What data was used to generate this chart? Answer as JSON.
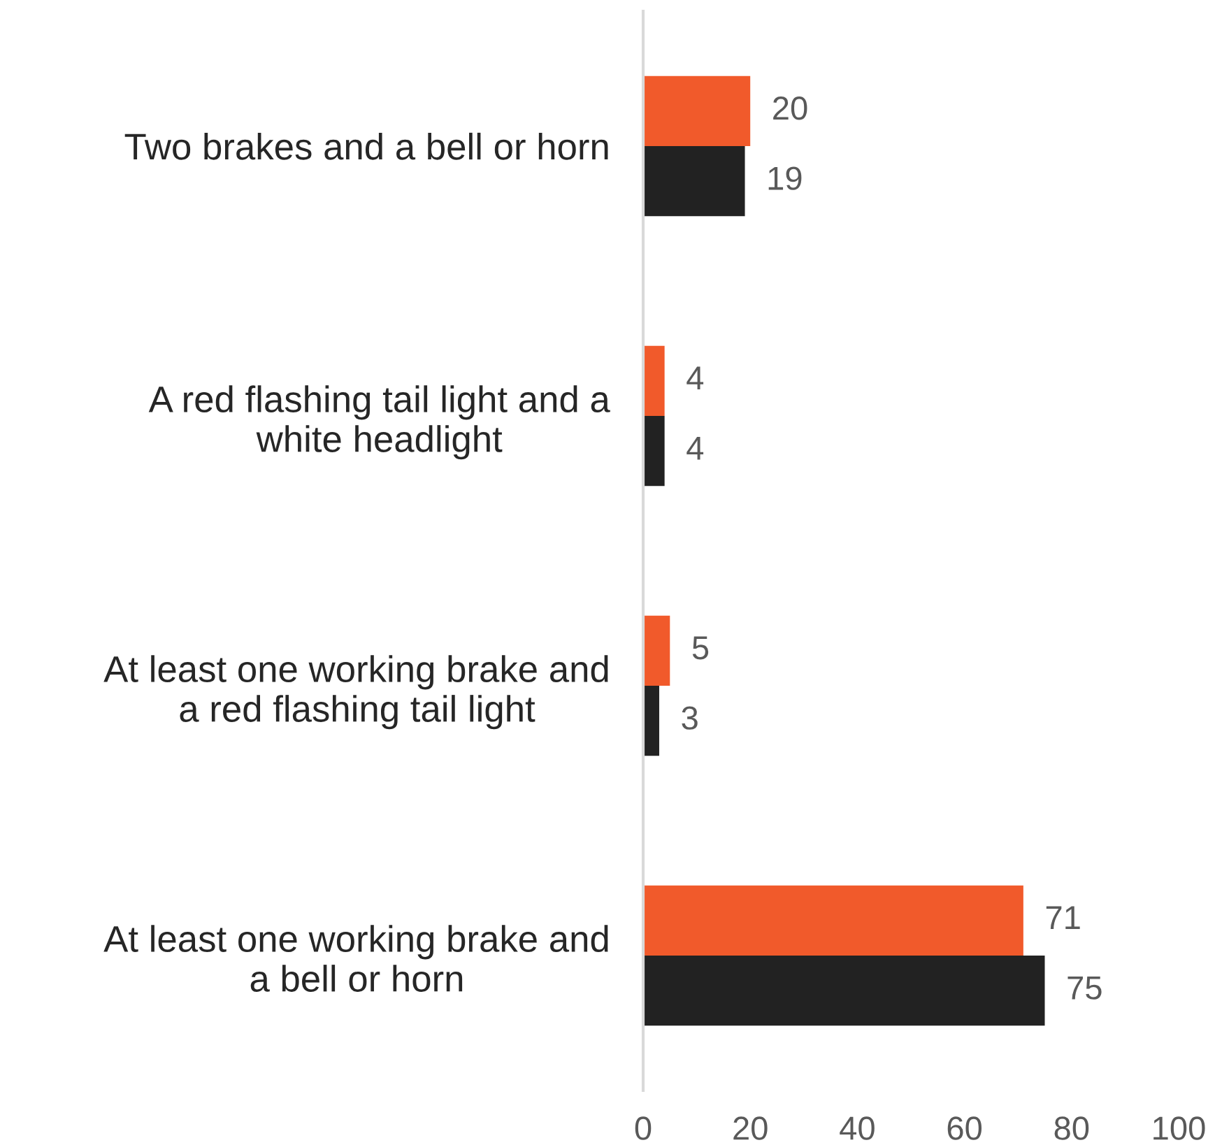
{
  "chart_data": {
    "type": "bar",
    "orientation": "horizontal",
    "categories": [
      "Two brakes and a bell or horn",
      "A red flashing tail light and a\nwhite headlight",
      "At least one working brake and\na red flashing tail light",
      "At least one working brake and\na bell or horn"
    ],
    "series": [
      {
        "color": "#f15a2b",
        "values": [
          20,
          4,
          5,
          71
        ]
      },
      {
        "color": "#222222",
        "values": [
          19,
          4,
          3,
          75
        ]
      }
    ],
    "xlim": [
      0,
      100
    ],
    "xticks": [
      0,
      20,
      40,
      60,
      80,
      100
    ],
    "data_labels": true
  }
}
